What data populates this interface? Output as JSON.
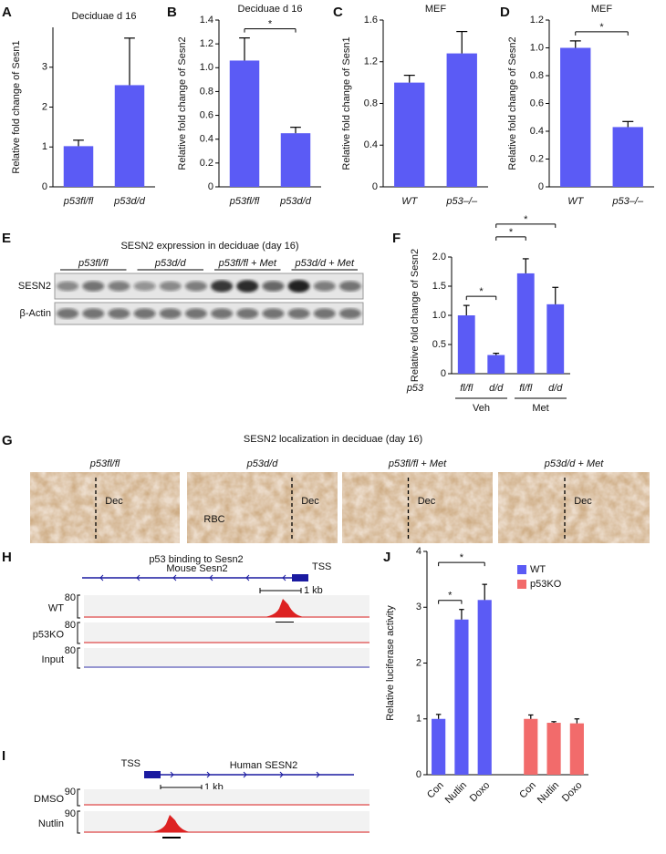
{
  "chart_data": [
    {
      "type": "bar",
      "panel": "A",
      "title": "Deciduae d 16",
      "y_label": "Relative fold change of Sesn1",
      "categories": [
        "p53fl/fl",
        "p53d/d"
      ],
      "values": [
        1.02,
        2.55
      ],
      "errors": [
        0.15,
        1.18
      ],
      "color": "#5b5bf5",
      "ylim": [
        0,
        4
      ],
      "yticks": [
        0,
        1,
        2,
        3
      ]
    },
    {
      "type": "bar",
      "panel": "B",
      "title": "Deciduae d 16",
      "y_label": "Relative fold change of Sesn2",
      "categories": [
        "p53fl/fl",
        "p53d/d"
      ],
      "values": [
        1.06,
        0.45
      ],
      "errors": [
        0.19,
        0.05
      ],
      "color": "#5b5bf5",
      "ylim": [
        0,
        1.4
      ],
      "yticks": [
        0,
        0.2,
        0.4,
        0.6,
        0.8,
        {
          "value": 1,
          "label": "1.0"
        },
        1.2,
        1.4
      ],
      "significance": [
        {
          "label": "*",
          "pair": [
            0,
            1
          ]
        }
      ]
    },
    {
      "type": "bar",
      "panel": "C",
      "title": "MEF",
      "y_label": "Relative fold change of Sesn1",
      "categories": [
        "WT",
        "p53–/–"
      ],
      "values": [
        1.0,
        1.28
      ],
      "errors": [
        0.07,
        0.21
      ],
      "color": "#5b5bf5",
      "ylim": [
        0,
        1.6
      ],
      "yticks": [
        0,
        0.4,
        0.8,
        1.2,
        1.6
      ]
    },
    {
      "type": "bar",
      "panel": "D",
      "title": "MEF",
      "y_label": "Relative fold change of Sesn2",
      "categories": [
        "WT",
        "p53–/–"
      ],
      "values": [
        1.0,
        0.43
      ],
      "errors": [
        0.05,
        0.04
      ],
      "color": "#5b5bf5",
      "ylim": [
        0,
        1.2
      ],
      "yticks": [
        0,
        0.2,
        0.4,
        0.6,
        0.8,
        {
          "value": 1,
          "label": "1.0"
        },
        1.2
      ],
      "significance": [
        {
          "label": "*",
          "pair": [
            0,
            1
          ]
        }
      ]
    },
    {
      "type": "bar",
      "panel": "F",
      "y_label": "Relative fold change of Sesn2",
      "row_label": "p53",
      "categories": [
        "fl/fl",
        "d/d",
        "fl/fl",
        "d/d"
      ],
      "groups": [
        "Veh",
        "Met"
      ],
      "values": [
        1.0,
        0.32,
        1.72,
        1.19
      ],
      "errors": [
        0.17,
        0.03,
        0.25,
        0.29
      ],
      "color": "#5b5bf5",
      "ylim": [
        0,
        2
      ],
      "yticks": [
        0,
        0.5,
        {
          "value": 1,
          "label": "1.0"
        },
        1.5,
        {
          "value": 2,
          "label": "2.0"
        }
      ],
      "significance": [
        {
          "label": "*",
          "pair": [
            0,
            1
          ]
        },
        {
          "label": "*",
          "pair": [
            1,
            2
          ]
        },
        {
          "label": "*",
          "pair": [
            1,
            3
          ]
        }
      ]
    },
    {
      "type": "grouped-bar",
      "panel": "J",
      "y_label": "Relative luciferase activity",
      "categories": [
        "Con",
        "Nutlin",
        "Doxo"
      ],
      "series": [
        {
          "name": "WT",
          "color": "#5b5bf5",
          "values": [
            1.0,
            2.78,
            3.13
          ],
          "errors": [
            0.08,
            0.18,
            0.28
          ]
        },
        {
          "name": "p53KO",
          "color": "#f26b6b",
          "values": [
            1.0,
            0.93,
            0.92
          ],
          "errors": [
            0.07,
            0.02,
            0.08
          ]
        }
      ],
      "ylim": [
        0,
        4
      ],
      "yticks": [
        0,
        1,
        2,
        3,
        4
      ],
      "legend": "upper right",
      "significance": [
        {
          "label": "*",
          "pair": [
            0,
            1
          ]
        },
        {
          "label": "*",
          "pair": [
            0,
            2
          ]
        }
      ]
    }
  ],
  "blot": {
    "panel": "E",
    "title": "SESN2 expression in deciduae (day 16)",
    "groups": [
      "p53fl/fl",
      "p53d/d",
      "p53fl/fl + Met",
      "p53d/d + Met"
    ],
    "rows": [
      "SESN2",
      "β-Actin"
    ]
  },
  "ihc": {
    "panel": "G",
    "title": "SESN2 localization in deciduae (day 16)",
    "images": [
      {
        "label": "p53fl/fl",
        "annotations": [
          "Dec"
        ]
      },
      {
        "label": "p53d/d",
        "annotations": [
          "RBC",
          "Dec"
        ]
      },
      {
        "label": "p53fl/fl + Met",
        "annotations": [
          "Dec"
        ]
      },
      {
        "label": "p53d/d + Met",
        "annotations": [
          "Dec"
        ]
      }
    ]
  },
  "chip_mouse": {
    "panel": "H",
    "title": "p53 binding to Sesn2",
    "gene": "Mouse Sesn2",
    "tss": "TSS",
    "scale": "1 kb",
    "tracks": [
      {
        "name": "WT",
        "max": 80
      },
      {
        "name": "p53KO",
        "max": 80
      },
      {
        "name": "Input",
        "max": 80
      }
    ]
  },
  "chip_human": {
    "panel": "I",
    "tss": "TSS",
    "gene": "Human SESN2",
    "scale": "1 kb",
    "tracks": [
      {
        "name": "DMSO",
        "max": 90
      },
      {
        "name": "Nutlin",
        "max": 90
      }
    ]
  }
}
